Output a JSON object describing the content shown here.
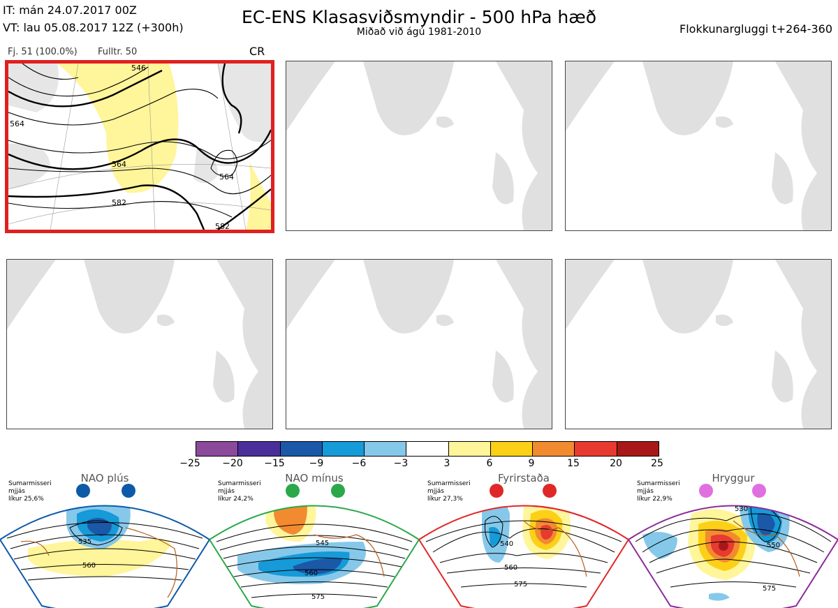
{
  "header": {
    "it_line": "IT: mán 24.07.2017 00Z",
    "vt_line": "VT: lau 05.08.2017 12Z  (+300h)",
    "title": "EC-ENS Klasasviðsmyndir - 500 hPa hæð",
    "subtitle": "Miðað við ágú 1981-2010",
    "window": "Flokkunargluggi t+264-360"
  },
  "cluster_info": {
    "members": "Fj. 51 (100.0%)",
    "representative": "Fulltr. 50",
    "regime_code": "CR"
  },
  "panel1_contours": [
    "546",
    "564",
    "564",
    "564",
    "582",
    "582"
  ],
  "colorbar": {
    "ticks": [
      "−25",
      "−20",
      "−15",
      "−9",
      "−6",
      "−3",
      "3",
      "6",
      "9",
      "15",
      "20",
      "25"
    ],
    "colors": [
      "#8b4a9c",
      "#4a2f9a",
      "#1b58a8",
      "#169ad8",
      "#86c8ea",
      "#ffffff",
      "#fff59a",
      "#fdd018",
      "#f28b30",
      "#e83a30",
      "#a81818"
    ]
  },
  "regimes": [
    {
      "name": "NAO plús",
      "note": "Sumarmisseri\nmjjás\nlíkur 25,6%",
      "dot_color": "#0d5aa8",
      "border": "#0d5aa8",
      "labels": [
        "535",
        "560"
      ]
    },
    {
      "name": "NAO mínus",
      "note": "Sumarmisseri\nmjjás\nlíkur 24,2%",
      "dot_color": "#2aa84a",
      "border": "#2aa84a",
      "labels": [
        "545",
        "560",
        "575"
      ]
    },
    {
      "name": "Fyrirstaða",
      "note": "Sumarmisseri\nmjjás\nlíkur 27,3%",
      "dot_color": "#e02828",
      "border": "#e02828",
      "labels": [
        "540",
        "560",
        "575"
      ]
    },
    {
      "name": "Hryggur",
      "note": "Sumarmisseri\nmjjás\nlíkur 22,9%",
      "dot_color": "#e070e0",
      "border": "#8b2a9c",
      "labels": [
        "530",
        "550",
        "575"
      ]
    }
  ]
}
